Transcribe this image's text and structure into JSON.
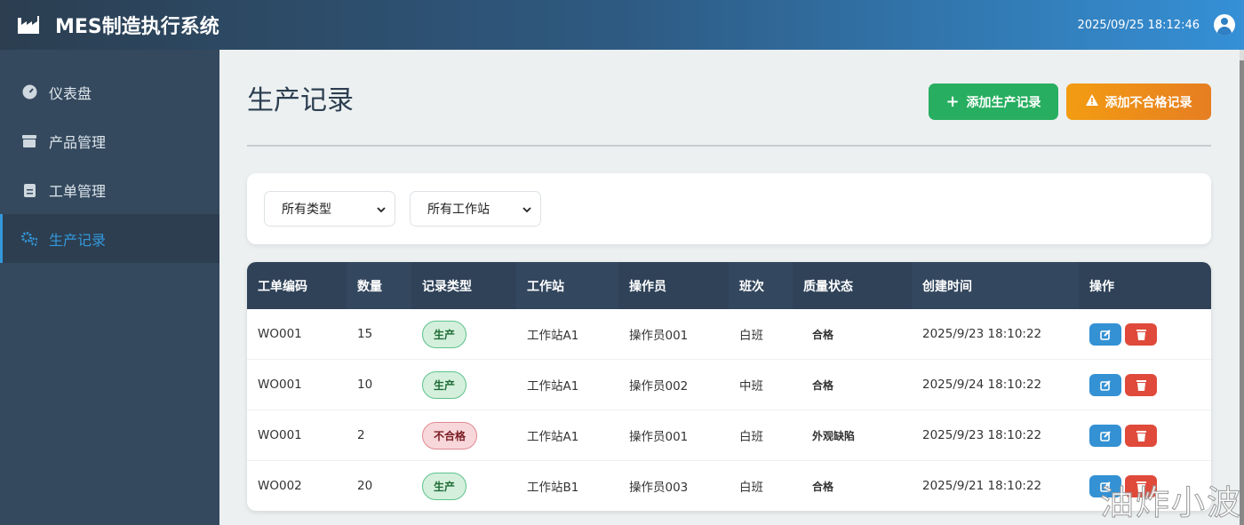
{
  "app": {
    "title": "MES制造执行系统",
    "datetime": "2025/09/25 18:12:46"
  },
  "sidebar": {
    "items": [
      {
        "label": "仪表盘",
        "icon": "gauge-icon"
      },
      {
        "label": "产品管理",
        "icon": "box-icon"
      },
      {
        "label": "工单管理",
        "icon": "clipboard-icon"
      },
      {
        "label": "生产记录",
        "icon": "cogs-icon",
        "active": true
      }
    ]
  },
  "main": {
    "title": "生产记录",
    "add_production_label": "添加生产记录",
    "add_defect_label": "添加不合格记录",
    "filters": {
      "type": "所有类型",
      "station": "所有工作站"
    },
    "table": {
      "headers": [
        "工单编码",
        "数量",
        "记录类型",
        "工作站",
        "操作员",
        "班次",
        "质量状态",
        "创建时间",
        "操作"
      ],
      "rows": [
        {
          "code": "WO001",
          "qty": "15",
          "type": "生产",
          "station": "工作站A1",
          "operator": "操作员001",
          "shift": "白班",
          "quality": "合格",
          "created": "2025/9/23 18:10:22"
        },
        {
          "code": "WO001",
          "qty": "10",
          "type": "生产",
          "station": "工作站A1",
          "operator": "操作员002",
          "shift": "中班",
          "quality": "合格",
          "created": "2025/9/24 18:10:22"
        },
        {
          "code": "WO001",
          "qty": "2",
          "type": "不合格",
          "station": "工作站A1",
          "operator": "操作员001",
          "shift": "白班",
          "quality": "外观缺陷",
          "created": "2025/9/23 18:10:22"
        },
        {
          "code": "WO002",
          "qty": "20",
          "type": "生产",
          "station": "工作站B1",
          "operator": "操作员003",
          "shift": "白班",
          "quality": "合格",
          "created": "2025/9/21 18:10:22"
        }
      ]
    }
  },
  "watermark": "油炸小波",
  "colors": {
    "green": "#27ae60",
    "orange": "#f39c12",
    "blue": "#3498db",
    "red": "#e74c3c",
    "sidebar": "#34495e"
  }
}
